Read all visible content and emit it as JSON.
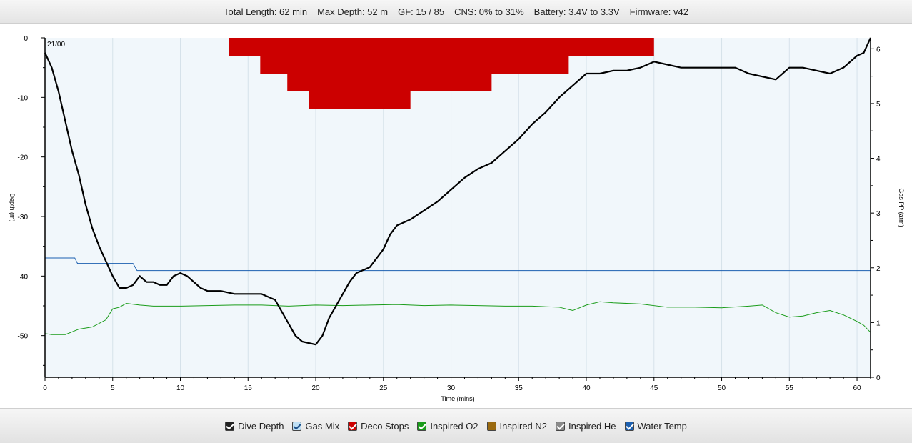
{
  "header": {
    "total_length": "Total Length: 62 min",
    "max_depth": "Max Depth: 52 m",
    "gf": "GF: 15 / 85",
    "cns": "CNS: 0% to 31%",
    "battery": "Battery: 3.4V to 3.3V",
    "firmware": "Firmware: v42"
  },
  "legend": [
    {
      "label": "Dive Depth",
      "color": "#222222",
      "checked": true,
      "check_dark": false
    },
    {
      "label": "Gas Mix",
      "color": "#bfe0f5",
      "checked": true,
      "check_dark": true
    },
    {
      "label": "Deco Stops",
      "color": "#cc0000",
      "checked": true,
      "check_dark": false
    },
    {
      "label": "Inspired O2",
      "color": "#1a9c1a",
      "checked": true,
      "check_dark": false
    },
    {
      "label": "Inspired N2",
      "color": "#9a6a10",
      "checked": false,
      "check_dark": false
    },
    {
      "label": "Inspired He",
      "color": "#8a8a8a",
      "checked": true,
      "check_dark": false
    },
    {
      "label": "Water Temp",
      "color": "#1b5fb0",
      "checked": true,
      "check_dark": false
    }
  ],
  "chart_data": {
    "type": "line",
    "xlabel": "Time (mins)",
    "ylabel": "Depth (m)",
    "y2label": "Gas PP (atm)",
    "xlim": [
      0,
      61
    ],
    "ylim": [
      0,
      -57
    ],
    "y2lim": [
      0,
      6.2
    ],
    "x_ticks": [
      0,
      5,
      10,
      15,
      20,
      25,
      30,
      35,
      40,
      45,
      50,
      55,
      60
    ],
    "y_ticks": [
      0,
      -10,
      -20,
      -30,
      -40,
      -50
    ],
    "y2_ticks": [
      0,
      1,
      2,
      3,
      4,
      5,
      6
    ],
    "gas_mix_label": "21/00",
    "colors": {
      "depth": "#000000",
      "deco": "#cc0000",
      "o2": "#1a9c1a",
      "temp": "#1b5fb0",
      "plot_bg": "#f1f7fb",
      "grid": "#d6e2ea"
    },
    "dive_depth": [
      [
        0,
        -2.5
      ],
      [
        0.5,
        -5
      ],
      [
        1,
        -9
      ],
      [
        1.5,
        -14
      ],
      [
        2,
        -19
      ],
      [
        2.5,
        -23
      ],
      [
        3,
        -28
      ],
      [
        3.5,
        -32
      ],
      [
        4,
        -35
      ],
      [
        4.5,
        -37.5
      ],
      [
        5,
        -40
      ],
      [
        5.5,
        -42
      ],
      [
        6,
        -42
      ],
      [
        6.5,
        -41.5
      ],
      [
        7,
        -40
      ],
      [
        7.5,
        -41
      ],
      [
        8,
        -41
      ],
      [
        8.5,
        -41.5
      ],
      [
        9,
        -41.5
      ],
      [
        9.5,
        -40
      ],
      [
        10,
        -39.5
      ],
      [
        10.5,
        -40
      ],
      [
        11,
        -41
      ],
      [
        11.5,
        -42
      ],
      [
        12,
        -42.5
      ],
      [
        13,
        -42.5
      ],
      [
        14,
        -43
      ],
      [
        15,
        -43
      ],
      [
        16,
        -43
      ],
      [
        17,
        -44
      ],
      [
        18,
        -48
      ],
      [
        18.5,
        -50
      ],
      [
        19,
        -51
      ],
      [
        20,
        -51.5
      ],
      [
        20.5,
        -50
      ],
      [
        21,
        -47
      ],
      [
        21.5,
        -45
      ],
      [
        22,
        -43
      ],
      [
        22.5,
        -41
      ],
      [
        23,
        -39.5
      ],
      [
        24,
        -38.5
      ],
      [
        25,
        -35.5
      ],
      [
        25.5,
        -33
      ],
      [
        26,
        -31.5
      ],
      [
        27,
        -30.5
      ],
      [
        28,
        -29
      ],
      [
        29,
        -27.5
      ],
      [
        30,
        -25.5
      ],
      [
        31,
        -23.5
      ],
      [
        32,
        -22
      ],
      [
        33,
        -21
      ],
      [
        34,
        -19
      ],
      [
        35,
        -17
      ],
      [
        36,
        -14.5
      ],
      [
        37,
        -12.5
      ],
      [
        38,
        -10
      ],
      [
        39,
        -8
      ],
      [
        40,
        -6
      ],
      [
        41,
        -6
      ],
      [
        42,
        -5.5
      ],
      [
        43,
        -5.5
      ],
      [
        44,
        -5
      ],
      [
        45,
        -4
      ],
      [
        46,
        -4.5
      ],
      [
        47,
        -5
      ],
      [
        48,
        -5
      ],
      [
        49,
        -5
      ],
      [
        50,
        -5
      ],
      [
        51,
        -5
      ],
      [
        52,
        -6
      ],
      [
        53,
        -6.5
      ],
      [
        54,
        -7
      ],
      [
        55,
        -5
      ],
      [
        56,
        -5
      ],
      [
        57,
        -5.5
      ],
      [
        58,
        -6
      ],
      [
        59,
        -5
      ],
      [
        60,
        -3
      ],
      [
        60.5,
        -2.5
      ],
      [
        61,
        0
      ]
    ],
    "deco_stops": [
      [
        13.6,
        0
      ],
      [
        13.6,
        -3
      ],
      [
        15.9,
        -3
      ],
      [
        15.9,
        -6
      ],
      [
        17.9,
        -6
      ],
      [
        17.9,
        -9
      ],
      [
        19.5,
        -9
      ],
      [
        19.5,
        -12
      ],
      [
        27,
        -12
      ],
      [
        27,
        -9
      ],
      [
        33,
        -9
      ],
      [
        33,
        -6
      ],
      [
        38.7,
        -6
      ],
      [
        38.7,
        -3
      ],
      [
        45,
        -3
      ],
      [
        45,
        0
      ]
    ],
    "inspired_o2": [
      [
        0,
        0.8
      ],
      [
        0.5,
        0.78
      ],
      [
        1.5,
        0.78
      ],
      [
        2.5,
        0.88
      ],
      [
        3.5,
        0.92
      ],
      [
        4.5,
        1.05
      ],
      [
        5,
        1.25
      ],
      [
        5.5,
        1.28
      ],
      [
        6,
        1.35
      ],
      [
        7,
        1.32
      ],
      [
        8,
        1.3
      ],
      [
        10,
        1.3
      ],
      [
        12,
        1.31
      ],
      [
        14,
        1.32
      ],
      [
        16,
        1.32
      ],
      [
        18,
        1.3
      ],
      [
        20,
        1.32
      ],
      [
        22,
        1.31
      ],
      [
        24,
        1.32
      ],
      [
        26,
        1.33
      ],
      [
        28,
        1.31
      ],
      [
        30,
        1.32
      ],
      [
        32,
        1.31
      ],
      [
        34,
        1.3
      ],
      [
        36,
        1.3
      ],
      [
        38,
        1.28
      ],
      [
        39,
        1.22
      ],
      [
        40,
        1.32
      ],
      [
        41,
        1.38
      ],
      [
        42,
        1.36
      ],
      [
        44,
        1.34
      ],
      [
        46,
        1.28
      ],
      [
        48,
        1.28
      ],
      [
        50,
        1.27
      ],
      [
        52,
        1.3
      ],
      [
        53,
        1.32
      ],
      [
        54,
        1.18
      ],
      [
        55,
        1.1
      ],
      [
        56,
        1.12
      ],
      [
        57,
        1.18
      ],
      [
        58,
        1.22
      ],
      [
        59,
        1.14
      ],
      [
        60,
        1.02
      ],
      [
        60.5,
        0.95
      ],
      [
        61,
        0.82
      ]
    ],
    "water_temp": [
      [
        0,
        2.18
      ],
      [
        2.2,
        2.18
      ],
      [
        2.4,
        2.08
      ],
      [
        6.5,
        2.08
      ],
      [
        6.8,
        1.95
      ],
      [
        61,
        1.95
      ]
    ]
  }
}
